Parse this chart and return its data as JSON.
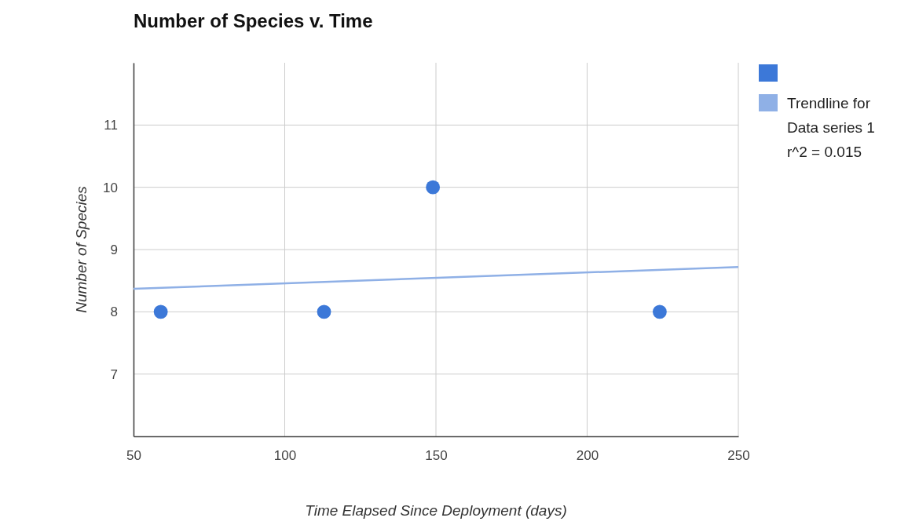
{
  "chart_data": {
    "type": "scatter",
    "title": "Number of Species v. Time",
    "xlabel": "Time Elapsed Since Deployment (days)",
    "ylabel": "Number of Species",
    "xlim": [
      50,
      250
    ],
    "xticks": [
      50,
      100,
      150,
      200,
      250
    ],
    "ylim": [
      6,
      12
    ],
    "yticks": [
      7,
      8,
      9,
      10,
      11
    ],
    "grid": true,
    "legend": "right",
    "series": [
      {
        "marker": "circle",
        "color": "#3c78d8",
        "x": [
          59,
          113,
          149,
          224
        ],
        "values": [
          8,
          8,
          10,
          8
        ]
      },
      {
        "type": "line",
        "name": "Trendline for Data series 1 r^2 = 0.015",
        "color": "#8fb0e6",
        "line_style": "solid",
        "x": [
          50,
          250
        ],
        "values": [
          8.37,
          8.72
        ]
      }
    ]
  }
}
